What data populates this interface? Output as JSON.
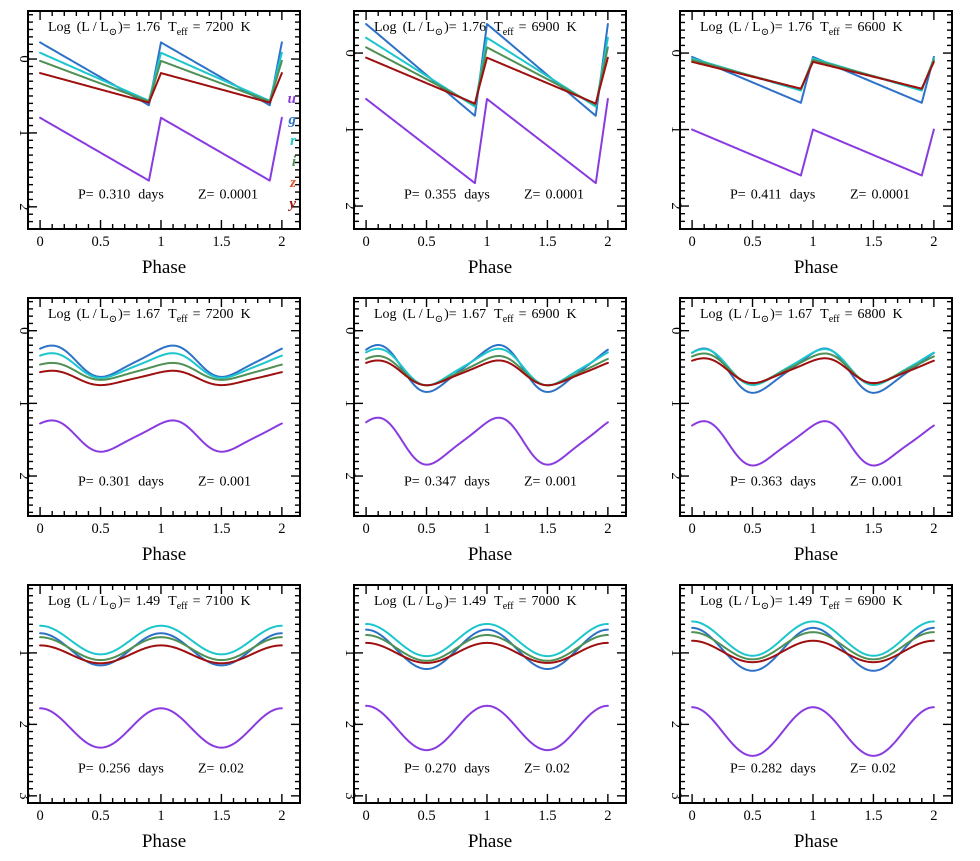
{
  "figure": {
    "xlabel": "Phase",
    "header_prefix": "Log",
    "header_lum_open": "(L / L",
    "header_sun_symbol": "⊙",
    "header_lum_close": ")=",
    "header_teff_T": "T",
    "header_teff_sub": "eff",
    "header_teff_eq": "=",
    "header_unit": "K",
    "period_prefix": "P=",
    "period_unit": "days",
    "metallicity_prefix": "Z=",
    "legend": [
      {
        "name": "u",
        "color": "#8a3be0"
      },
      {
        "name": "g",
        "color": "#2e72c8"
      },
      {
        "name": "r",
        "color": "#1cc6cc"
      },
      {
        "name": "i",
        "color": "#4f9055"
      },
      {
        "name": "z",
        "color": "#e0542c"
      },
      {
        "name": "y",
        "color": "#9e1010"
      }
    ]
  },
  "chart_data": [
    {
      "type": "line",
      "title": "Log (L / L⊙)= 1.76 Teff = 7200 K",
      "logL": "1.76",
      "teff": "7200",
      "period": "0.310",
      "Z": "0.0001",
      "xlim": [
        -0.1,
        2.15
      ],
      "ylim": [
        2.3,
        -0.65
      ],
      "xticks": [
        "0",
        "0.5",
        "1",
        "1.5",
        "2"
      ],
      "yticks": [
        "0",
        "1",
        "2"
      ],
      "shape": "saw",
      "mins": [
        0.62,
        0.62,
        0.58,
        0.6,
        0.6,
        0.62
      ],
      "max": [
        0.55,
        0.5
      ],
      "series": [
        {
          "name": "u",
          "mean": 1.22,
          "amp": 0.85
        },
        {
          "name": "g",
          "mean": 0.2,
          "amp": 0.85
        },
        {
          "name": "r",
          "mean": 0.24,
          "amp": 0.65
        },
        {
          "name": "i",
          "mean": 0.3,
          "amp": 0.55
        },
        {
          "name": "y",
          "mean": 0.39,
          "amp": 0.4
        }
      ]
    },
    {
      "type": "line",
      "title": "Log (L / L⊙)= 1.76 Teff = 6900 K",
      "logL": "1.76",
      "teff": "6900",
      "period": "0.355",
      "Z": "0.0001",
      "xlim": [
        -0.1,
        2.15
      ],
      "ylim": [
        2.3,
        -0.55
      ],
      "xticks": [
        "0",
        "0.5",
        "1",
        "1.5",
        "2"
      ],
      "yticks": [
        "0",
        "1",
        "2"
      ],
      "shape": "saw",
      "series": [
        {
          "name": "u",
          "mean": 1.15,
          "amp": 1.1
        },
        {
          "name": "g",
          "mean": 0.22,
          "amp": 1.2
        },
        {
          "name": "r",
          "mean": 0.25,
          "amp": 0.9
        },
        {
          "name": "i",
          "mean": 0.3,
          "amp": 0.75
        },
        {
          "name": "y",
          "mean": 0.36,
          "amp": 0.6
        }
      ]
    },
    {
      "type": "line",
      "title": "Log (L / L⊙)= 1.76 Teff = 6600 K",
      "logL": "1.76",
      "teff": "6600",
      "period": "0.411",
      "Z": "0.0001",
      "xlim": [
        -0.1,
        2.15
      ],
      "ylim": [
        2.3,
        -0.55
      ],
      "xticks": [
        "0",
        "0.5",
        "1",
        "1.5",
        "2"
      ],
      "yticks": [
        "0",
        "1",
        "2"
      ],
      "shape": "saw",
      "series": [
        {
          "name": "u",
          "mean": 1.3,
          "amp": 0.6
        },
        {
          "name": "g",
          "mean": 0.35,
          "amp": 0.6
        },
        {
          "name": "r",
          "mean": 0.28,
          "amp": 0.42
        },
        {
          "name": "i",
          "mean": 0.28,
          "amp": 0.38
        },
        {
          "name": "y",
          "mean": 0.29,
          "amp": 0.35
        }
      ]
    },
    {
      "type": "line",
      "title": "Log (L / L⊙)= 1.67 Teff = 7200 K",
      "logL": "1.67",
      "teff": "7200",
      "period": "0.301",
      "Z": "0.001",
      "xlim": [
        -0.1,
        2.15
      ],
      "ylim": [
        2.55,
        -0.45
      ],
      "xticks": [
        "0",
        "0.5",
        "1",
        "1.5",
        "2"
      ],
      "yticks": [
        "0",
        "1",
        "2"
      ],
      "shape": "round",
      "series": [
        {
          "name": "u",
          "mean": 1.45,
          "amp": 0.48
        },
        {
          "name": "g",
          "mean": 0.42,
          "amp": 0.48
        },
        {
          "name": "r",
          "mean": 0.48,
          "amp": 0.38
        },
        {
          "name": "i",
          "mean": 0.56,
          "amp": 0.26
        },
        {
          "name": "y",
          "mean": 0.65,
          "amp": 0.22
        }
      ]
    },
    {
      "type": "line",
      "title": "Log (L / L⊙)= 1.67 Teff = 6900 K",
      "logL": "1.67",
      "teff": "6900",
      "period": "0.347",
      "Z": "0.001",
      "xlim": [
        -0.1,
        2.15
      ],
      "ylim": [
        2.55,
        -0.45
      ],
      "xticks": [
        "0",
        "0.5",
        "1",
        "1.5",
        "2"
      ],
      "yticks": [
        "0",
        "1",
        "2"
      ],
      "shape": "round",
      "series": [
        {
          "name": "u",
          "mean": 1.52,
          "amp": 0.72
        },
        {
          "name": "g",
          "mean": 0.52,
          "amp": 0.72
        },
        {
          "name": "r",
          "mean": 0.5,
          "amp": 0.56
        },
        {
          "name": "i",
          "mean": 0.55,
          "amp": 0.45
        },
        {
          "name": "y",
          "mean": 0.58,
          "amp": 0.38
        }
      ]
    },
    {
      "type": "line",
      "title": "Log (L / L⊙)= 1.67 Teff = 6800 K",
      "logL": "1.67",
      "teff": "6800",
      "period": "0.363",
      "Z": "0.001",
      "xlim": [
        -0.1,
        2.15
      ],
      "ylim": [
        2.55,
        -0.45
      ],
      "xticks": [
        "0",
        "0.5",
        "1",
        "1.5",
        "2"
      ],
      "yticks": [
        "0",
        "1",
        "2"
      ],
      "shape": "round",
      "series": [
        {
          "name": "u",
          "mean": 1.55,
          "amp": 0.68
        },
        {
          "name": "g",
          "mean": 0.55,
          "amp": 0.68
        },
        {
          "name": "r",
          "mean": 0.5,
          "amp": 0.55
        },
        {
          "name": "i",
          "mean": 0.52,
          "amp": 0.46
        },
        {
          "name": "y",
          "mean": 0.55,
          "amp": 0.38
        }
      ]
    },
    {
      "type": "line",
      "title": "Log (L / L⊙)= 1.49 Teff = 7100 K",
      "logL": "1.49",
      "teff": "7100",
      "period": "0.256",
      "Z": "0.02",
      "xlim": [
        -0.1,
        2.15
      ],
      "ylim": [
        3.1,
        0.05
      ],
      "xticks": [
        "0",
        "0.5",
        "1",
        "1.5",
        "2"
      ],
      "yticks": [
        "1",
        "2",
        "3"
      ],
      "shape": "sine",
      "series": [
        {
          "name": "u",
          "mean": 2.05,
          "amp": 0.55
        },
        {
          "name": "g",
          "mean": 0.95,
          "amp": 0.45
        },
        {
          "name": "r",
          "mean": 0.82,
          "amp": 0.4
        },
        {
          "name": "i",
          "mean": 0.94,
          "amp": 0.32
        },
        {
          "name": "y",
          "mean": 1.02,
          "amp": 0.25
        }
      ]
    },
    {
      "type": "line",
      "title": "Log (L / L⊙)= 1.49 Teff = 7000 K",
      "logL": "1.49",
      "teff": "7000",
      "period": "0.270",
      "Z": "0.02",
      "xlim": [
        -0.1,
        2.15
      ],
      "ylim": [
        3.1,
        0.05
      ],
      "xticks": [
        "0",
        "0.5",
        "1",
        "1.5",
        "2"
      ],
      "yticks": [
        "1",
        "2",
        "3"
      ],
      "shape": "sine",
      "series": [
        {
          "name": "u",
          "mean": 2.05,
          "amp": 0.62
        },
        {
          "name": "g",
          "mean": 0.95,
          "amp": 0.55
        },
        {
          "name": "r",
          "mean": 0.82,
          "amp": 0.45
        },
        {
          "name": "i",
          "mean": 0.93,
          "amp": 0.36
        },
        {
          "name": "y",
          "mean": 1.0,
          "amp": 0.28
        }
      ]
    },
    {
      "type": "line",
      "title": "Log (L / L⊙)= 1.49 Teff = 6900 K",
      "logL": "1.49",
      "teff": "6900",
      "period": "0.282",
      "Z": "0.02",
      "xlim": [
        -0.1,
        2.15
      ],
      "ylim": [
        3.1,
        0.05
      ],
      "xticks": [
        "0",
        "0.5",
        "1",
        "1.5",
        "2"
      ],
      "yticks": [
        "1",
        "2",
        "3"
      ],
      "shape": "sine",
      "series": [
        {
          "name": "u",
          "mean": 2.1,
          "amp": 0.68
        },
        {
          "name": "g",
          "mean": 0.95,
          "amp": 0.6
        },
        {
          "name": "r",
          "mean": 0.8,
          "amp": 0.48
        },
        {
          "name": "i",
          "mean": 0.9,
          "amp": 0.38
        },
        {
          "name": "y",
          "mean": 0.98,
          "amp": 0.3
        }
      ]
    }
  ]
}
